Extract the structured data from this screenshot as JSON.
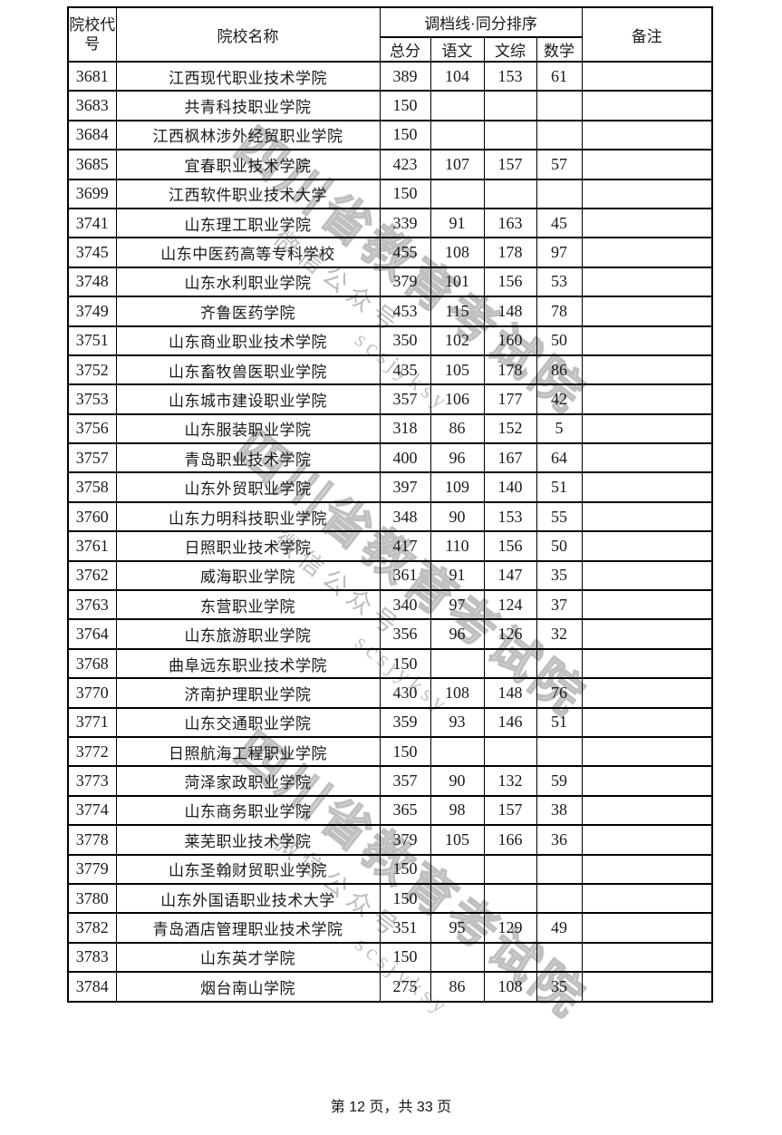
{
  "table": {
    "headers": {
      "col_code": "院校代号",
      "col_name": "院校名称",
      "col_group": "调档线·同分排序",
      "sub_total": "总分",
      "sub_chinese": "语文",
      "sub_wenzong": "文综",
      "sub_math": "数学",
      "col_remark": "备注"
    },
    "rows": [
      {
        "code": "3681",
        "name": "江西现代职业技术学院",
        "total": "389",
        "chinese": "104",
        "wenzong": "153",
        "math": "61",
        "remark": ""
      },
      {
        "code": "3683",
        "name": "共青科技职业学院",
        "total": "150",
        "chinese": "",
        "wenzong": "",
        "math": "",
        "remark": ""
      },
      {
        "code": "3684",
        "name": "江西枫林涉外经贸职业学院",
        "total": "150",
        "chinese": "",
        "wenzong": "",
        "math": "",
        "remark": ""
      },
      {
        "code": "3685",
        "name": "宜春职业技术学院",
        "total": "423",
        "chinese": "107",
        "wenzong": "157",
        "math": "57",
        "remark": ""
      },
      {
        "code": "3699",
        "name": "江西软件职业技术大学",
        "total": "150",
        "chinese": "",
        "wenzong": "",
        "math": "",
        "remark": ""
      },
      {
        "code": "3741",
        "name": "山东理工职业学院",
        "total": "339",
        "chinese": "91",
        "wenzong": "163",
        "math": "45",
        "remark": ""
      },
      {
        "code": "3745",
        "name": "山东中医药高等专科学校",
        "total": "455",
        "chinese": "108",
        "wenzong": "178",
        "math": "97",
        "remark": ""
      },
      {
        "code": "3748",
        "name": "山东水利职业学院",
        "total": "379",
        "chinese": "101",
        "wenzong": "156",
        "math": "53",
        "remark": ""
      },
      {
        "code": "3749",
        "name": "齐鲁医药学院",
        "total": "453",
        "chinese": "115",
        "wenzong": "148",
        "math": "78",
        "remark": ""
      },
      {
        "code": "3751",
        "name": "山东商业职业技术学院",
        "total": "350",
        "chinese": "102",
        "wenzong": "160",
        "math": "50",
        "remark": ""
      },
      {
        "code": "3752",
        "name": "山东畜牧兽医职业学院",
        "total": "435",
        "chinese": "105",
        "wenzong": "178",
        "math": "86",
        "remark": ""
      },
      {
        "code": "3753",
        "name": "山东城市建设职业学院",
        "total": "357",
        "chinese": "106",
        "wenzong": "177",
        "math": "42",
        "remark": ""
      },
      {
        "code": "3756",
        "name": "山东服装职业学院",
        "total": "318",
        "chinese": "86",
        "wenzong": "152",
        "math": "5",
        "remark": ""
      },
      {
        "code": "3757",
        "name": "青岛职业技术学院",
        "total": "400",
        "chinese": "96",
        "wenzong": "167",
        "math": "64",
        "remark": ""
      },
      {
        "code": "3758",
        "name": "山东外贸职业学院",
        "total": "397",
        "chinese": "109",
        "wenzong": "140",
        "math": "51",
        "remark": ""
      },
      {
        "code": "3760",
        "name": "山东力明科技职业学院",
        "total": "348",
        "chinese": "90",
        "wenzong": "153",
        "math": "55",
        "remark": ""
      },
      {
        "code": "3761",
        "name": "日照职业技术学院",
        "total": "417",
        "chinese": "110",
        "wenzong": "156",
        "math": "50",
        "remark": ""
      },
      {
        "code": "3762",
        "name": "威海职业学院",
        "total": "361",
        "chinese": "91",
        "wenzong": "147",
        "math": "35",
        "remark": ""
      },
      {
        "code": "3763",
        "name": "东营职业学院",
        "total": "340",
        "chinese": "97",
        "wenzong": "124",
        "math": "37",
        "remark": ""
      },
      {
        "code": "3764",
        "name": "山东旅游职业学院",
        "total": "356",
        "chinese": "96",
        "wenzong": "126",
        "math": "32",
        "remark": ""
      },
      {
        "code": "3768",
        "name": "曲阜远东职业技术学院",
        "total": "150",
        "chinese": "",
        "wenzong": "",
        "math": "",
        "remark": ""
      },
      {
        "code": "3770",
        "name": "济南护理职业学院",
        "total": "430",
        "chinese": "108",
        "wenzong": "148",
        "math": "76",
        "remark": ""
      },
      {
        "code": "3771",
        "name": "山东交通职业学院",
        "total": "359",
        "chinese": "93",
        "wenzong": "146",
        "math": "51",
        "remark": ""
      },
      {
        "code": "3772",
        "name": "日照航海工程职业学院",
        "total": "150",
        "chinese": "",
        "wenzong": "",
        "math": "",
        "remark": ""
      },
      {
        "code": "3773",
        "name": "菏泽家政职业学院",
        "total": "357",
        "chinese": "90",
        "wenzong": "132",
        "math": "59",
        "remark": ""
      },
      {
        "code": "3774",
        "name": "山东商务职业学院",
        "total": "365",
        "chinese": "98",
        "wenzong": "157",
        "math": "38",
        "remark": ""
      },
      {
        "code": "3778",
        "name": "莱芜职业技术学院",
        "total": "379",
        "chinese": "105",
        "wenzong": "166",
        "math": "36",
        "remark": ""
      },
      {
        "code": "3779",
        "name": "山东圣翰财贸职业学院",
        "total": "150",
        "chinese": "",
        "wenzong": "",
        "math": "",
        "remark": ""
      },
      {
        "code": "3780",
        "name": "山东外国语职业技术大学",
        "total": "150",
        "chinese": "",
        "wenzong": "",
        "math": "",
        "remark": ""
      },
      {
        "code": "3782",
        "name": "青岛酒店管理职业技术学院",
        "total": "351",
        "chinese": "95",
        "wenzong": "129",
        "math": "49",
        "remark": ""
      },
      {
        "code": "3783",
        "name": "山东英才学院",
        "total": "150",
        "chinese": "",
        "wenzong": "",
        "math": "",
        "remark": ""
      },
      {
        "code": "3784",
        "name": "烟台南山学院",
        "total": "275",
        "chinese": "86",
        "wenzong": "108",
        "math": "35",
        "remark": ""
      }
    ]
  },
  "watermark": {
    "line1": "四川省教育考试院",
    "line2": "微信公众号",
    "line3": "scsjyksy",
    "color": "#bfbfbf"
  },
  "footer": {
    "page_text": "第 12 页，共 33 页"
  }
}
